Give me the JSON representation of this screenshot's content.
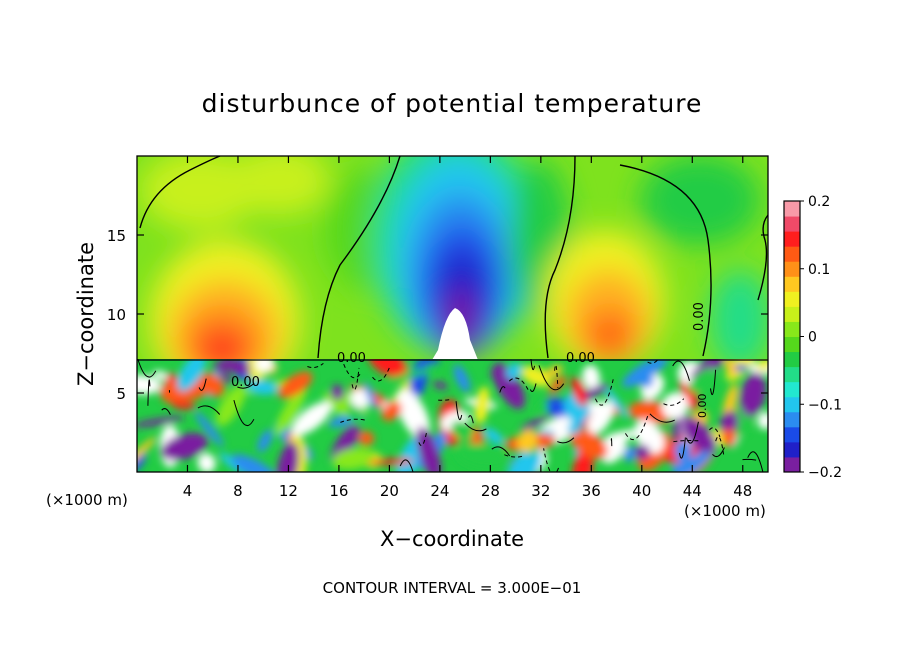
{
  "chart_data": {
    "type": "heatmap",
    "title": "disturbunce of potential temperature",
    "xlabel": "X−coordinate",
    "ylabel": "Z−coordinate",
    "x_unit_left": "(×1000 m)",
    "x_unit_right": "(×1000 m)",
    "footer": "CONTOUR INTERVAL = 3.000E−01",
    "xlim": [
      0,
      50
    ],
    "ylim": [
      0,
      20
    ],
    "x_ticks": [
      "4",
      "8",
      "12",
      "16",
      "20",
      "24",
      "28",
      "32",
      "36",
      "40",
      "44",
      "48"
    ],
    "y_ticks": [
      "5",
      "10",
      "15"
    ],
    "colorbar": {
      "range": [
        -0.2,
        0.2
      ],
      "tick_labels": [
        "0.2",
        "0.1",
        "0",
        "−0.1",
        "−0.2"
      ],
      "colors_low_to_high": [
        "#7a1fa0",
        "#2020c8",
        "#1a4be8",
        "#2b8cf0",
        "#22c6ee",
        "#22e8d0",
        "#22dd88",
        "#22cc44",
        "#55d81c",
        "#88e81a",
        "#c8f01a",
        "#f0f020",
        "#ffc820",
        "#ff9018",
        "#ff5a14",
        "#ff1e1e",
        "#f04a68",
        "#f89aa8"
      ]
    },
    "contour_labels": [
      "0.00",
      "0.00",
      "0.00",
      "0.00",
      "0.00"
    ],
    "features": [
      {
        "kind": "cold anomaly",
        "x": 25,
        "z": 14,
        "value": -0.2
      },
      {
        "kind": "warm anomaly",
        "x": 7,
        "z": 9,
        "value": 0.12
      },
      {
        "kind": "warm anomaly",
        "x": 38,
        "z": 9,
        "value": 0.1
      },
      {
        "kind": "turbulent layer",
        "z_top": 7.2
      }
    ]
  }
}
